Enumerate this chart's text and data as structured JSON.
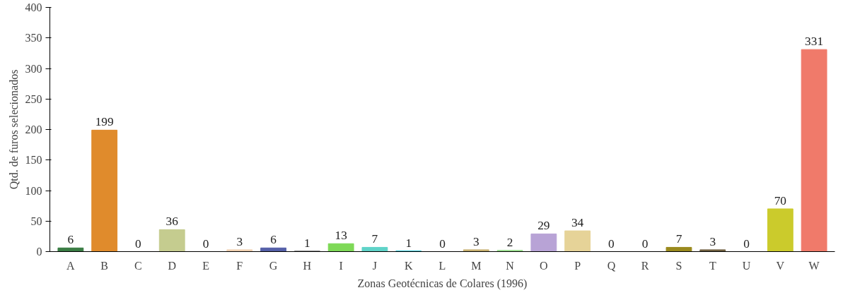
{
  "chart_data": {
    "type": "bar",
    "xlabel": "Zonas Geotécnicas de Colares (1996)",
    "ylabel": "Qtd. de furos selecionados",
    "categories": [
      "A",
      "B",
      "C",
      "D",
      "E",
      "F",
      "G",
      "H",
      "I",
      "J",
      "K",
      "L",
      "M",
      "N",
      "O",
      "P",
      "Q",
      "R",
      "S",
      "T",
      "U",
      "V",
      "W"
    ],
    "values": [
      6,
      199,
      0,
      36,
      0,
      3,
      6,
      1,
      13,
      7,
      1,
      0,
      3,
      2,
      29,
      34,
      0,
      0,
      7,
      3,
      0,
      70,
      331
    ],
    "colors": [
      "#3a7d44",
      "#e08b2c",
      "#8c564b",
      "#c5cc8f",
      "#9467bd",
      "#f0d0b0",
      "#5560a8",
      "#7f7f7f",
      "#7ed957",
      "#5fd3c8",
      "#17becf",
      "#aec7e8",
      "#c8b070",
      "#98df8a",
      "#b8a3d6",
      "#e6d398",
      "#ff9896",
      "#c49c94",
      "#9a8a1e",
      "#706040",
      "#dbdb8d",
      "#cbcb2c",
      "#f07a6a"
    ],
    "ylim": [
      0,
      400
    ],
    "yticks": [
      0,
      50,
      100,
      150,
      200,
      250,
      300,
      350,
      400
    ],
    "data_labels": true,
    "grid": false
  }
}
